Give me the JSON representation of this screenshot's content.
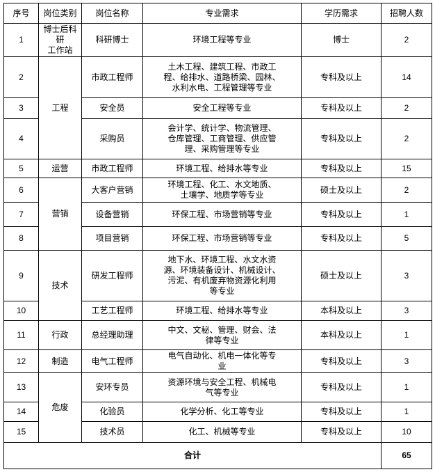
{
  "header": {
    "columns": [
      "序号",
      "岗位类别",
      "岗位名称",
      "专业需求",
      "学历需求",
      "招聘人数"
    ]
  },
  "rows": [
    {
      "no": "1",
      "category": "博士后科研\n工作站",
      "position": "科研博士",
      "majors": "环境工程等专业",
      "education": "博士",
      "count": "2"
    },
    {
      "no": "2",
      "category": "工程",
      "position": "市政工程师",
      "majors": "土木工程、建筑工程、市政工\n程、给排水、道路桥梁、园林、\n水利水电、工程管理等专业",
      "education": "专科及以上",
      "count": "14"
    },
    {
      "no": "3",
      "position": "安全员",
      "majors": "安全工程等专业",
      "education": "专科及以上",
      "count": "2"
    },
    {
      "no": "4",
      "position": "采购员",
      "majors": "会计学、统计学、物流管理、\n仓库管理、工商管理、供应管\n理、采购管理等专业",
      "education": "专科及以上",
      "count": "2"
    },
    {
      "no": "5",
      "category": "运营",
      "position": "市政工程师",
      "majors": "环境工程、给排水等专业",
      "education": "专科及以上",
      "count": "15"
    },
    {
      "no": "6",
      "category": "营销",
      "position": "大客户营销",
      "majors": "环境工程、化工、水文地质、\n土壤学、地质学等专业",
      "education": "硕士及以上",
      "count": "2"
    },
    {
      "no": "7",
      "position": "设备营销",
      "majors": "环保工程、市场营销等专业",
      "education": "专科及以上",
      "count": "1"
    },
    {
      "no": "8",
      "position": "项目营销",
      "majors": "环保工程、市场营销等专业",
      "education": "专科及以上",
      "count": "5"
    },
    {
      "no": "9",
      "category": "技术",
      "position": "研发工程师",
      "majors": "地下水、环境工程、水文水资\n源、环境装备设计、机械设计、\n污泥、有机废弃物资源化利用\n等专业",
      "education": "硕士及以上",
      "count": "3"
    },
    {
      "no": "10",
      "position": "工艺工程师",
      "majors": "环境工程、给排水等专业",
      "education": "本科及以上",
      "count": "3"
    },
    {
      "no": "11",
      "category": "行政",
      "position": "总经理助理",
      "majors": "中文、文秘、管理、财会、法\n律等专业",
      "education": "本科及以上",
      "count": "1"
    },
    {
      "no": "12",
      "category": "制造",
      "position": "电气工程师",
      "majors": "电气自动化、机电一体化等专\n业",
      "education": "专科及以上",
      "count": "3"
    },
    {
      "no": "13",
      "category": "危废",
      "position": "安环专员",
      "majors": "资源环境与安全工程、机械电\n气等专业",
      "education": "专科及以上",
      "count": "1"
    },
    {
      "no": "14",
      "position": "化验员",
      "majors": "化学分析、化工等专业",
      "education": "专科及以上",
      "count": "1"
    },
    {
      "no": "15",
      "position": "技术员",
      "majors": "化工、机械等专业",
      "education": "专科及以上",
      "count": "10"
    }
  ],
  "footer": {
    "label": "合计",
    "total": "65"
  }
}
